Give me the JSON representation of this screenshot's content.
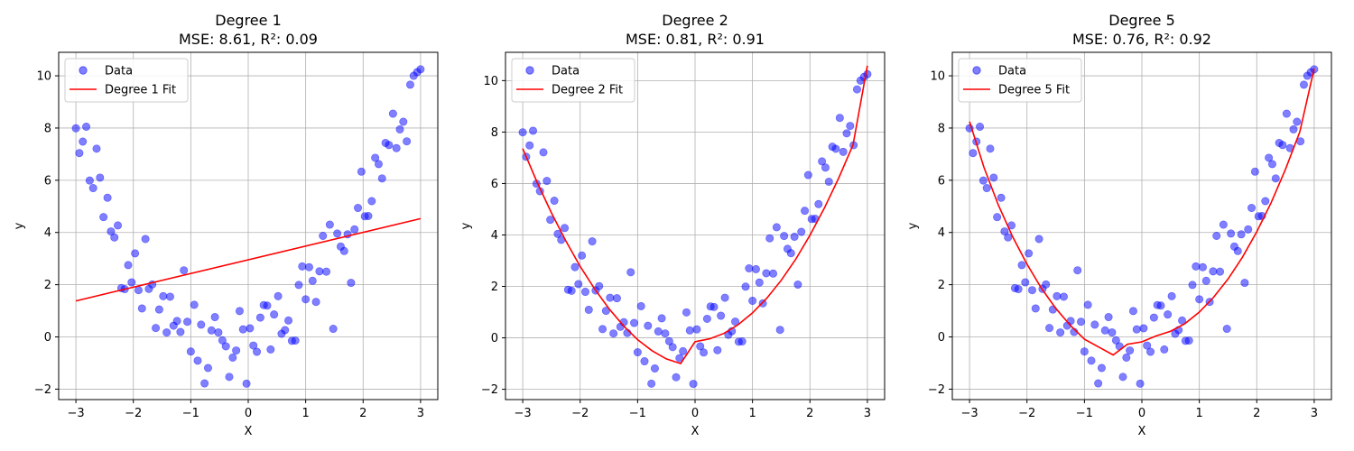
{
  "figure": {
    "background": "#ffffff"
  },
  "chart_data": [
    {
      "type": "scatter",
      "title": "Degree 1",
      "subtitle": "MSE: 8.61, R²: 0.09",
      "xlabel": "X",
      "ylabel": "y",
      "xlim": [
        -3.3,
        3.3
      ],
      "ylim": [
        -2.4,
        10.9
      ],
      "xticks": [
        -3,
        -2,
        -1,
        0,
        1,
        2,
        3
      ],
      "yticks": [
        -2,
        0,
        2,
        4,
        6,
        8,
        10
      ],
      "grid": true,
      "legend_position": "top-left",
      "series": [
        {
          "name": "Data",
          "kind": "scatter",
          "color": "#0000ff",
          "x": [
            -3.0,
            -2.94,
            -2.88,
            -2.82,
            -2.76,
            -2.7,
            -2.64,
            -2.58,
            -2.52,
            -2.45,
            -2.39,
            -2.33,
            -2.27,
            -2.21,
            -2.15,
            -2.09,
            -2.03,
            -1.97,
            -1.91,
            -1.85,
            -1.79,
            -1.73,
            -1.67,
            -1.61,
            -1.55,
            -1.48,
            -1.42,
            -1.36,
            -1.3,
            -1.24,
            -1.18,
            -1.12,
            -1.06,
            -1.0,
            -0.94,
            -0.88,
            -0.82,
            -0.76,
            -0.7,
            -0.64,
            -0.58,
            -0.52,
            -0.45,
            -0.39,
            -0.33,
            -0.27,
            -0.21,
            -0.15,
            -0.09,
            -0.03,
            0.03,
            0.09,
            0.15,
            0.21,
            0.27,
            0.33,
            0.39,
            0.45,
            0.52,
            0.58,
            0.64,
            0.7,
            0.76,
            0.82,
            0.88,
            0.94,
            1.0,
            1.06,
            1.12,
            1.18,
            1.24,
            1.3,
            1.36,
            1.42,
            1.48,
            1.55,
            1.61,
            1.67,
            1.73,
            1.79,
            1.85,
            1.91,
            1.97,
            2.03,
            2.09,
            2.15,
            2.21,
            2.27,
            2.33,
            2.39,
            2.45,
            2.52,
            2.58,
            2.64,
            2.7,
            2.76,
            2.82,
            2.88,
            2.94,
            3.0
          ],
          "y": [
            7.99,
            7.04,
            7.48,
            8.05,
            5.99,
            5.7,
            7.21,
            6.1,
            4.59,
            5.33,
            4.04,
            3.81,
            4.27,
            1.87,
            1.83,
            2.75,
            2.09,
            3.2,
            1.79,
            1.09,
            3.75,
            1.84,
            2.01,
            0.34,
            1.05,
            1.56,
            0.17,
            1.54,
            0.43,
            0.61,
            0.19,
            2.55,
            0.58,
            -0.56,
            1.23,
            -0.91,
            0.47,
            -1.78,
            -1.19,
            0.25,
            0.76,
            0.17,
            -0.13,
            -0.36,
            -1.53,
            -0.79,
            -0.52,
            0.99,
            0.29,
            -1.79,
            0.33,
            -0.33,
            -0.57,
            0.74,
            1.22,
            1.2,
            -0.48,
            0.86,
            1.56,
            0.12,
            0.26,
            0.63,
            -0.15,
            -0.14,
            1.99,
            2.7,
            1.44,
            2.67,
            2.15,
            1.34,
            2.51,
            3.87,
            2.5,
            4.3,
            0.31,
            3.96,
            3.46,
            3.29,
            3.93,
            2.07,
            4.12,
            4.94,
            6.33,
            4.62,
            4.63,
            5.2,
            6.86,
            6.62,
            6.07,
            7.43,
            7.35,
            8.55,
            7.23,
            7.95,
            8.24,
            7.49,
            9.66,
            10.0,
            10.14,
            10.25
          ]
        },
        {
          "name": "Degree 1 Fit",
          "kind": "line",
          "color": "#ff0000",
          "x": [
            -3.0,
            3.0
          ],
          "y": [
            1.38,
            4.53
          ]
        }
      ]
    },
    {
      "type": "scatter",
      "title": "Degree 2",
      "subtitle": "MSE: 0.81, R²: 0.91",
      "xlabel": "X",
      "ylabel": "y",
      "xlim": [
        -3.3,
        3.3
      ],
      "ylim": [
        -2.4,
        11.1
      ],
      "xticks": [
        -3,
        -2,
        -1,
        0,
        1,
        2,
        3
      ],
      "yticks": [
        -2,
        0,
        2,
        4,
        6,
        8,
        10
      ],
      "grid": true,
      "legend_position": "top-left",
      "series": [
        {
          "name": "Data",
          "kind": "scatter",
          "color": "#0000ff",
          "same_as_first_panel": true
        },
        {
          "name": "Degree 2 Fit",
          "kind": "line",
          "color": "#ff0000",
          "x": [
            -3.0,
            -2.75,
            -2.5,
            -2.25,
            -2.0,
            -1.75,
            -1.5,
            -1.25,
            -1.0,
            -0.75,
            -0.5,
            -0.25,
            0.0,
            0.25,
            0.5,
            0.75,
            1.0,
            1.25,
            1.5,
            1.75,
            2.0,
            2.25,
            2.5,
            2.75,
            3.0
          ],
          "y": [
            7.36,
            6.05,
            4.86,
            3.77,
            2.78,
            1.91,
            1.14,
            0.48,
            -0.07,
            -0.5,
            -0.82,
            -1.0,
            -0.15,
            -0.04,
            0.17,
            0.51,
            0.97,
            1.54,
            2.24,
            3.05,
            3.99,
            5.04,
            6.21,
            7.5,
            10.58
          ]
        }
      ]
    },
    {
      "type": "scatter",
      "title": "Degree 5",
      "subtitle": "MSE: 0.76, R²: 0.92",
      "xlabel": "X",
      "ylabel": "y",
      "xlim": [
        -3.3,
        3.3
      ],
      "ylim": [
        -2.4,
        10.9
      ],
      "xticks": [
        -3,
        -2,
        -1,
        0,
        1,
        2,
        3
      ],
      "yticks": [
        -2,
        0,
        2,
        4,
        6,
        8,
        10
      ],
      "grid": true,
      "legend_position": "top-left",
      "series": [
        {
          "name": "Data",
          "kind": "scatter",
          "color": "#0000ff",
          "same_as_first_panel": true
        },
        {
          "name": "Degree 5 Fit",
          "kind": "line",
          "color": "#ff0000",
          "x": [
            -3.0,
            -2.75,
            -2.5,
            -2.25,
            -2.0,
            -1.75,
            -1.5,
            -1.25,
            -1.0,
            -0.75,
            -0.5,
            -0.25,
            0.0,
            0.25,
            0.5,
            0.75,
            1.0,
            1.25,
            1.5,
            1.75,
            2.0,
            2.25,
            2.5,
            2.75,
            3.0
          ],
          "y": [
            8.25,
            6.5,
            5.06,
            3.84,
            2.79,
            1.87,
            1.1,
            0.45,
            -0.09,
            -0.39,
            -0.69,
            -0.28,
            -0.19,
            0.04,
            0.22,
            0.51,
            0.95,
            1.52,
            2.22,
            3.05,
            4.03,
            5.14,
            6.42,
            7.86,
            10.28
          ]
        }
      ]
    }
  ]
}
